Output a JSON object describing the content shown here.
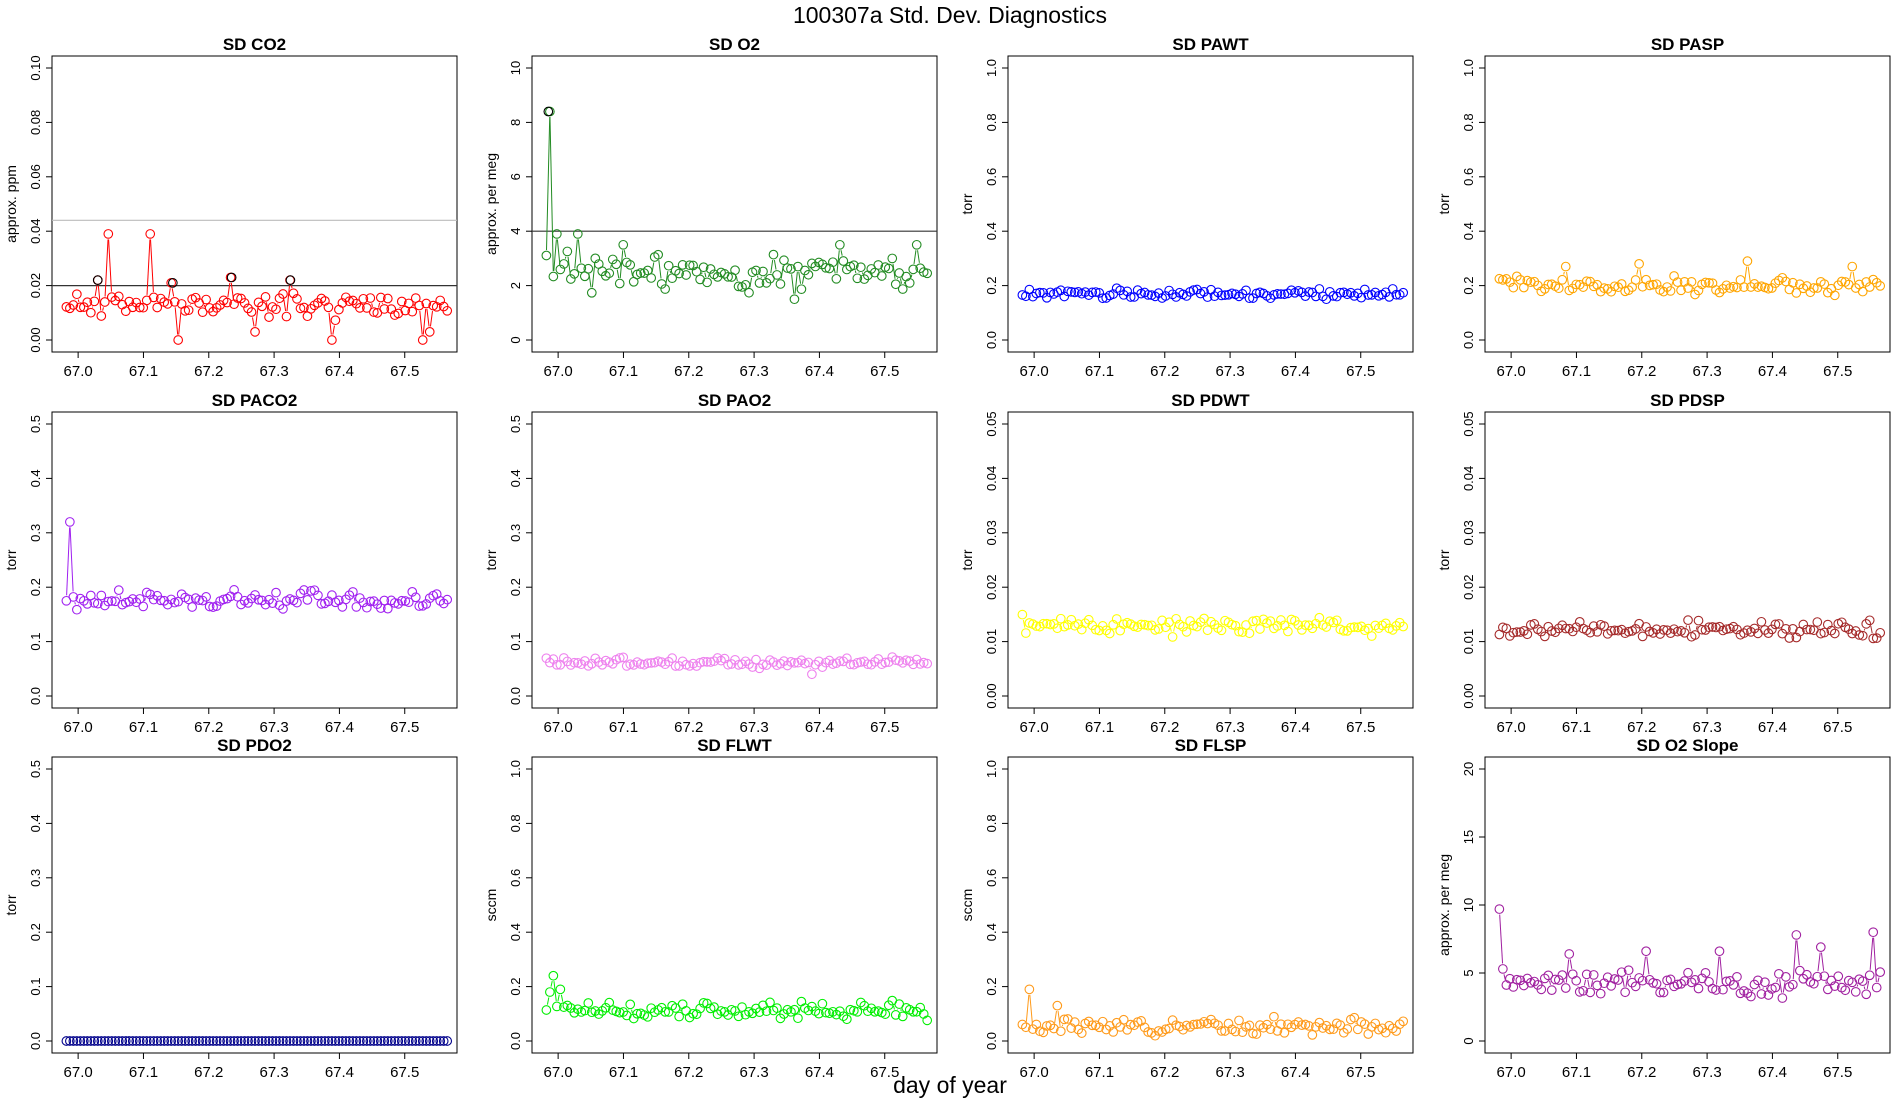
{
  "figure": {
    "title": "100307a   Std. Dev. Diagnostics",
    "xlabel": "day of year"
  },
  "chart_data": [
    {
      "type": "scatter",
      "title": "SD CO2",
      "ylabel": "approx. ppm",
      "color": "#ff0000",
      "ylim": [
        0,
        0.1
      ],
      "yticks": [
        "0.00",
        "0.02",
        "0.04",
        "0.06",
        "0.08",
        "0.10"
      ],
      "xlim": [
        66.96,
        67.58
      ],
      "xticks": [
        "67.0",
        "67.1",
        "67.2",
        "67.3",
        "67.4",
        "67.5"
      ],
      "n": 110,
      "base": 0.013,
      "noise": 0.003,
      "seed": 11,
      "spikes": [
        [
          67.045,
          0.039
        ],
        [
          67.11,
          0.039
        ],
        [
          67.235,
          0.023
        ],
        [
          67.03,
          0.022
        ],
        [
          67.325,
          0.022
        ],
        [
          67.145,
          0.021
        ],
        [
          67.155,
          0.0
        ],
        [
          67.39,
          0.0
        ],
        [
          67.53,
          0.0
        ],
        [
          67.27,
          0.003
        ],
        [
          67.54,
          0.003
        ]
      ],
      "refline_dark": 0.02,
      "refline_light": 0.044,
      "black_points": [
        [
          67.03,
          0.022
        ],
        [
          67.145,
          0.021
        ],
        [
          67.235,
          0.023
        ],
        [
          67.325,
          0.022
        ]
      ]
    },
    {
      "type": "scatter",
      "title": "SD O2",
      "ylabel": "approx. per meg",
      "color": "#228b22",
      "ylim": [
        0,
        10
      ],
      "yticks": [
        "0",
        "2",
        "4",
        "6",
        "8",
        "10"
      ],
      "xlim": [
        66.96,
        67.58
      ],
      "xticks": [
        "67.0",
        "67.1",
        "67.2",
        "67.3",
        "67.4",
        "67.5"
      ],
      "n": 110,
      "base": 2.5,
      "noise": 0.45,
      "seed": 23,
      "spikes": [
        [
          66.985,
          8.4
        ],
        [
          67.0,
          3.9
        ],
        [
          67.03,
          3.9
        ],
        [
          67.1,
          3.5
        ],
        [
          67.43,
          3.5
        ],
        [
          67.55,
          3.5
        ],
        [
          67.36,
          1.5
        ]
      ],
      "refline_dark": 4,
      "black_points": [
        [
          66.985,
          8.4
        ]
      ]
    },
    {
      "type": "scatter",
      "title": "SD PAWT",
      "ylabel": "torr",
      "color": "#0000ff",
      "ylim": [
        0,
        1
      ],
      "yticks": [
        "0.0",
        "0.2",
        "0.4",
        "0.6",
        "0.8",
        "1.0"
      ],
      "xlim": [
        66.96,
        67.58
      ],
      "xticks": [
        "67.0",
        "67.1",
        "67.2",
        "67.3",
        "67.4",
        "67.5"
      ],
      "n": 110,
      "base": 0.17,
      "noise": 0.012,
      "seed": 31,
      "spikes": []
    },
    {
      "type": "scatter",
      "title": "SD PASP",
      "ylabel": "torr",
      "color": "#ffa500",
      "ylim": [
        0,
        1
      ],
      "yticks": [
        "0.0",
        "0.2",
        "0.4",
        "0.6",
        "0.8",
        "1.0"
      ],
      "xlim": [
        66.96,
        67.58
      ],
      "xticks": [
        "67.0",
        "67.1",
        "67.2",
        "67.3",
        "67.4",
        "67.5"
      ],
      "n": 110,
      "base": 0.2,
      "noise": 0.022,
      "seed": 37,
      "spikes": [
        [
          67.195,
          0.28
        ],
        [
          67.36,
          0.29
        ],
        [
          67.52,
          0.27
        ],
        [
          67.085,
          0.27
        ]
      ]
    },
    {
      "type": "scatter",
      "title": "SD PACO2",
      "ylabel": "torr",
      "color": "#a020f0",
      "ylim": [
        0,
        0.5
      ],
      "yticks": [
        "0.0",
        "0.1",
        "0.2",
        "0.3",
        "0.4",
        "0.5"
      ],
      "xlim": [
        66.96,
        67.58
      ],
      "xticks": [
        "67.0",
        "67.1",
        "67.2",
        "67.3",
        "67.4",
        "67.5"
      ],
      "n": 110,
      "base": 0.175,
      "noise": 0.013,
      "seed": 41,
      "spikes": [
        [
          66.99,
          0.32
        ],
        [
          66.98,
          0.175
        ]
      ]
    },
    {
      "type": "scatter",
      "title": "SD PAO2",
      "ylabel": "torr",
      "color": "#ee82ee",
      "ylim": [
        0,
        0.5
      ],
      "yticks": [
        "0.0",
        "0.1",
        "0.2",
        "0.3",
        "0.4",
        "0.5"
      ],
      "xlim": [
        66.96,
        67.58
      ],
      "xticks": [
        "67.0",
        "67.1",
        "67.2",
        "67.3",
        "67.4",
        "67.5"
      ],
      "n": 110,
      "base": 0.062,
      "noise": 0.006,
      "seed": 43,
      "spikes": [
        [
          67.39,
          0.04
        ]
      ]
    },
    {
      "type": "scatter",
      "title": "SD PDWT",
      "ylabel": "torr",
      "color": "#ffff00",
      "ylim": [
        0,
        0.05
      ],
      "yticks": [
        "0.00",
        "0.01",
        "0.02",
        "0.03",
        "0.04",
        "0.05"
      ],
      "xlim": [
        66.96,
        67.58
      ],
      "xticks": [
        "67.0",
        "67.1",
        "67.2",
        "67.3",
        "67.4",
        "67.5"
      ],
      "n": 110,
      "base": 0.013,
      "noise": 0.0011,
      "seed": 47,
      "spikes": []
    },
    {
      "type": "scatter",
      "title": "SD PDSP",
      "ylabel": "torr",
      "color": "#a52a2a",
      "ylim": [
        0,
        0.05
      ],
      "yticks": [
        "0.00",
        "0.01",
        "0.02",
        "0.03",
        "0.04",
        "0.05"
      ],
      "xlim": [
        66.96,
        67.58
      ],
      "xticks": [
        "67.0",
        "67.1",
        "67.2",
        "67.3",
        "67.4",
        "67.5"
      ],
      "n": 110,
      "base": 0.0122,
      "noise": 0.001,
      "seed": 53,
      "spikes": []
    },
    {
      "type": "scatter",
      "title": "SD PDO2",
      "ylabel": "torr",
      "color": "#00008b",
      "ylim": [
        0,
        0.5
      ],
      "yticks": [
        "0.0",
        "0.1",
        "0.2",
        "0.3",
        "0.4",
        "0.5"
      ],
      "xlim": [
        66.96,
        67.58
      ],
      "xticks": [
        "67.0",
        "67.1",
        "67.2",
        "67.3",
        "67.4",
        "67.5"
      ],
      "n": 110,
      "base": 0.0,
      "noise": 0.0,
      "seed": 59,
      "spikes": []
    },
    {
      "type": "scatter",
      "title": "SD FLWT",
      "ylabel": "sccm",
      "color": "#00ee00",
      "ylim": [
        0,
        1
      ],
      "yticks": [
        "0.0",
        "0.2",
        "0.4",
        "0.6",
        "0.8",
        "1.0"
      ],
      "xlim": [
        66.96,
        67.58
      ],
      "xticks": [
        "67.0",
        "67.1",
        "67.2",
        "67.3",
        "67.4",
        "67.5"
      ],
      "n": 110,
      "base": 0.11,
      "noise": 0.022,
      "seed": 61,
      "spikes": [
        [
          66.985,
          0.18
        ],
        [
          66.995,
          0.24
        ],
        [
          67.005,
          0.19
        ]
      ]
    },
    {
      "type": "scatter",
      "title": "SD FLSP",
      "ylabel": "sccm",
      "color": "#ff9a1a",
      "ylim": [
        0,
        1
      ],
      "yticks": [
        "0.0",
        "0.2",
        "0.4",
        "0.6",
        "0.8",
        "1.0"
      ],
      "xlim": [
        66.96,
        67.58
      ],
      "xticks": [
        "67.0",
        "67.1",
        "67.2",
        "67.3",
        "67.4",
        "67.5"
      ],
      "n": 110,
      "base": 0.055,
      "noise": 0.02,
      "seed": 67,
      "spikes": [
        [
          66.995,
          0.19
        ],
        [
          67.035,
          0.13
        ]
      ]
    },
    {
      "type": "scatter",
      "title": "SD O2 Slope",
      "ylabel": "approx. per meg",
      "color": "#a020a0",
      "ylim": [
        0,
        20
      ],
      "yticks": [
        "0",
        "5",
        "10",
        "15",
        "20"
      ],
      "xlim": [
        66.96,
        67.58
      ],
      "xticks": [
        "67.0",
        "67.1",
        "67.2",
        "67.3",
        "67.4",
        "67.5"
      ],
      "n": 110,
      "base": 4.3,
      "noise": 0.7,
      "seed": 71,
      "spikes": [
        [
          66.98,
          9.7
        ],
        [
          66.985,
          7.3
        ],
        [
          66.99,
          5.3
        ],
        [
          67.435,
          7.8
        ],
        [
          67.555,
          8.0
        ],
        [
          67.205,
          6.6
        ],
        [
          67.32,
          6.6
        ],
        [
          67.09,
          6.4
        ],
        [
          67.475,
          6.9
        ]
      ]
    }
  ]
}
